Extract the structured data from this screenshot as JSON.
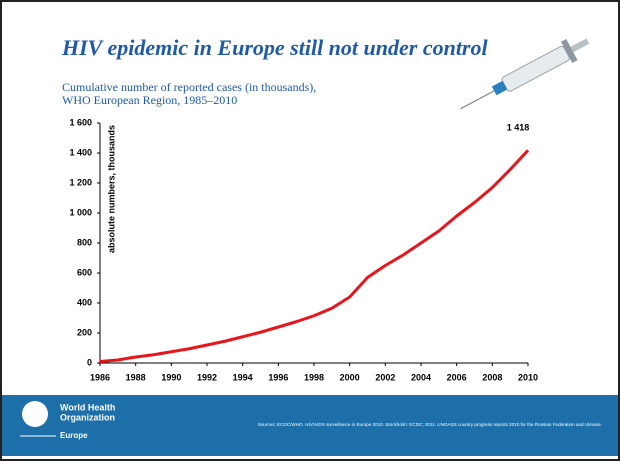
{
  "chart_data": {
    "type": "line",
    "title": "HIV epidemic in Europe still not under control",
    "subtitle": [
      "Cumulative number of reported cases (in thousands),",
      "WHO European Region, 1985–2010"
    ],
    "y_label": "absolute numbers, thousands",
    "x": [
      1986,
      1987,
      1988,
      1989,
      1990,
      1991,
      1992,
      1993,
      1994,
      1995,
      1996,
      1997,
      1998,
      1999,
      2000,
      2001,
      2002,
      2003,
      2004,
      2005,
      2006,
      2007,
      2008,
      2009,
      2010
    ],
    "values": [
      10,
      20,
      40,
      55,
      75,
      95,
      120,
      145,
      175,
      205,
      240,
      275,
      315,
      365,
      440,
      570,
      650,
      720,
      800,
      880,
      980,
      1070,
      1170,
      1290,
      1418
    ],
    "value_labels": [
      null,
      null,
      null,
      null,
      null,
      null,
      null,
      null,
      null,
      null,
      null,
      null,
      null,
      null,
      null,
      null,
      null,
      null,
      null,
      null,
      null,
      null,
      null,
      null,
      "1 418"
    ],
    "color": "#e8151b",
    "xlim": [
      1986,
      2010
    ],
    "xticks": [
      1986,
      1988,
      1990,
      1992,
      1994,
      1996,
      1998,
      2000,
      2002,
      2004,
      2006,
      2008,
      2010
    ],
    "ylim": [
      0,
      1600
    ],
    "yticks": [
      0,
      200,
      400,
      600,
      800,
      {
        "value": 1000,
        "label": "1 000"
      },
      {
        "value": 1200,
        "label": "1 200"
      },
      {
        "value": 1400,
        "label": "1 400"
      },
      {
        "value": 1600,
        "label": "1 600"
      }
    ],
    "grid": false
  },
  "footer": {
    "logo": [
      "World Health",
      "Organization",
      "Europe"
    ],
    "sources": "Sources: ECDC/WHO. HIV/AIDS surveillance in Europe 2010. Stockholm: ECDC; 2011. UNGASS country progress reports 2010 for the Russian Federation and Ukraine."
  }
}
